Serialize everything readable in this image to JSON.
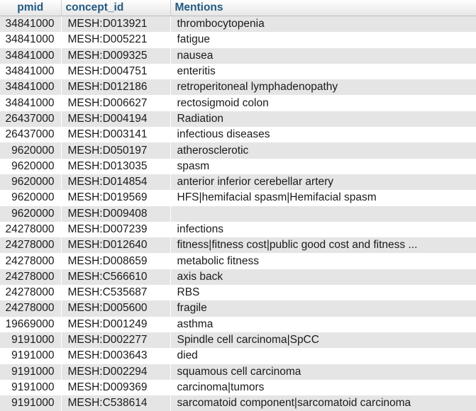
{
  "table": {
    "headers": {
      "pmid": "pmid",
      "concept_id": "concept_id",
      "mentions": "Mentions"
    },
    "rows": [
      {
        "pmid": "34841000",
        "concept_id": "MESH:D013921",
        "mentions": "thrombocytopenia"
      },
      {
        "pmid": "34841000",
        "concept_id": "MESH:D005221",
        "mentions": "fatigue"
      },
      {
        "pmid": "34841000",
        "concept_id": "MESH:D009325",
        "mentions": "nausea"
      },
      {
        "pmid": "34841000",
        "concept_id": "MESH:D004751",
        "mentions": "enteritis"
      },
      {
        "pmid": "34841000",
        "concept_id": "MESH:D012186",
        "mentions": "retroperitoneal lymphadenopathy"
      },
      {
        "pmid": "34841000",
        "concept_id": "MESH:D006627",
        "mentions": "rectosigmoid colon"
      },
      {
        "pmid": "26437000",
        "concept_id": "MESH:D004194",
        "mentions": "Radiation"
      },
      {
        "pmid": "26437000",
        "concept_id": "MESH:D003141",
        "mentions": "infectious diseases"
      },
      {
        "pmid": "9620000",
        "concept_id": "MESH:D050197",
        "mentions": "atherosclerotic"
      },
      {
        "pmid": "9620000",
        "concept_id": "MESH:D013035",
        "mentions": "spasm"
      },
      {
        "pmid": "9620000",
        "concept_id": "MESH:D014854",
        "mentions": "anterior inferior cerebellar artery"
      },
      {
        "pmid": "9620000",
        "concept_id": "MESH:D019569",
        "mentions": "HFS|hemifacial spasm|Hemifacial spasm"
      },
      {
        "pmid": "9620000",
        "concept_id": "MESH:D009408",
        "mentions": ""
      },
      {
        "pmid": "24278000",
        "concept_id": "MESH:D007239",
        "mentions": "infections"
      },
      {
        "pmid": "24278000",
        "concept_id": "MESH:D012640",
        "mentions": "fitness|fitness cost|public good cost and fitness ..."
      },
      {
        "pmid": "24278000",
        "concept_id": "MESH:D008659",
        "mentions": "metabolic fitness"
      },
      {
        "pmid": "24278000",
        "concept_id": "MESH:C566610",
        "mentions": "axis back"
      },
      {
        "pmid": "24278000",
        "concept_id": "MESH:C535687",
        "mentions": "RBS"
      },
      {
        "pmid": "24278000",
        "concept_id": "MESH:D005600",
        "mentions": "fragile"
      },
      {
        "pmid": "19669000",
        "concept_id": "MESH:D001249",
        "mentions": "asthma"
      },
      {
        "pmid": "9191000",
        "concept_id": "MESH:D002277",
        "mentions": "Spindle cell carcinoma|SpCC"
      },
      {
        "pmid": "9191000",
        "concept_id": "MESH:D003643",
        "mentions": "died"
      },
      {
        "pmid": "9191000",
        "concept_id": "MESH:D002294",
        "mentions": "squamous cell carcinoma"
      },
      {
        "pmid": "9191000",
        "concept_id": "MESH:D009369",
        "mentions": "carcinoma|tumors"
      },
      {
        "pmid": "9191000",
        "concept_id": "MESH:C538614",
        "mentions": "sarcomatoid component|sarcomatoid carcinoma"
      }
    ]
  }
}
